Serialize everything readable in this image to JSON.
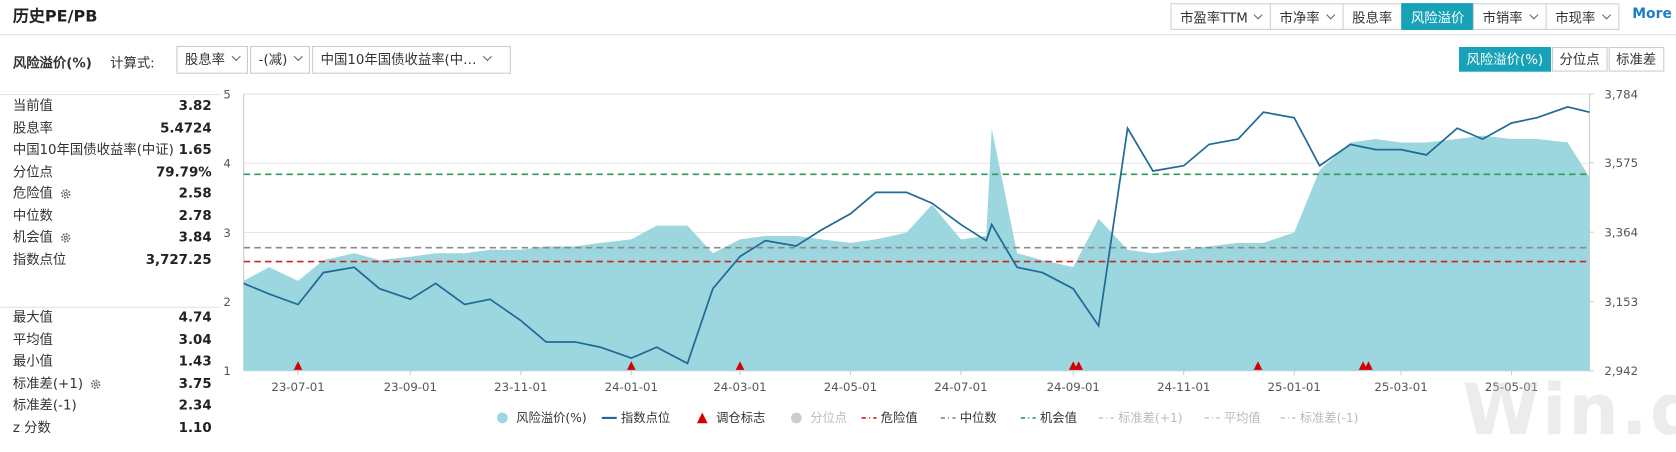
{
  "header": {
    "title": "历史PE/PB",
    "tabs": [
      {
        "label": "市盈率TTM",
        "dropdown": true
      },
      {
        "label": "市净率",
        "dropdown": true
      },
      {
        "label": "股息率",
        "dropdown": false
      },
      {
        "label": "风险溢价",
        "dropdown": false
      },
      {
        "label": "市销率",
        "dropdown": true
      },
      {
        "label": "市现率",
        "dropdown": true
      }
    ],
    "active_tab": 3,
    "more": "More"
  },
  "controls": {
    "label": "风险溢价(%)",
    "formula_label": "计算式:",
    "selects": [
      "股息率",
      "-(减)",
      "中国10年国债收益率(中…"
    ],
    "views": [
      "风险溢价(%)",
      "分位点",
      "标准差"
    ],
    "active_view": 0
  },
  "stats": {
    "groups": [
      [
        {
          "label": "当前值",
          "value": "3.82"
        },
        {
          "label": "股息率",
          "value": "5.4724"
        },
        {
          "label": "中国10年国债收益率(中证)",
          "value": "1.65"
        },
        {
          "label": "分位点",
          "value": "79.79%"
        },
        {
          "label": "危险值",
          "value": "2.58",
          "settings": true
        },
        {
          "label": "中位数",
          "value": "2.78"
        },
        {
          "label": "机会值",
          "value": "3.84",
          "settings": true
        },
        {
          "label": "指数点位",
          "value": "3,727.25"
        }
      ],
      [
        {
          "label": "最大值",
          "value": "4.74"
        },
        {
          "label": "平均值",
          "value": "3.04"
        },
        {
          "label": "最小值",
          "value": "1.43"
        },
        {
          "label": "标准差(+1)",
          "value": "3.75",
          "settings": true
        },
        {
          "label": "标准差(-1)",
          "value": "2.34"
        },
        {
          "label": "z 分数",
          "value": "1.10"
        }
      ]
    ]
  },
  "chart_data": {
    "type": "area-line",
    "x": [
      "23-06-01",
      "23-06-15",
      "23-07-01",
      "23-07-15",
      "23-08-01",
      "23-08-15",
      "23-09-01",
      "23-09-15",
      "23-10-01",
      "23-10-15",
      "23-11-01",
      "23-11-15",
      "23-12-01",
      "23-12-15",
      "24-01-01",
      "24-01-15",
      "24-02-01",
      "24-02-15",
      "24-03-01",
      "24-03-15",
      "24-04-01",
      "24-04-15",
      "24-05-01",
      "24-05-15",
      "24-06-01",
      "24-06-15",
      "24-07-01",
      "24-07-15",
      "24-07-18",
      "24-08-01",
      "24-08-15",
      "24-09-01",
      "24-09-15",
      "24-10-01",
      "24-10-15",
      "24-11-01",
      "24-11-15",
      "24-12-01",
      "24-12-15",
      "25-01-01",
      "25-01-15",
      "25-02-01",
      "25-02-15",
      "25-03-01",
      "25-03-15",
      "25-04-01",
      "25-04-15",
      "25-05-01",
      "25-05-15",
      "25-06-01",
      "25-06-13"
    ],
    "xlim": [
      "23-06-01",
      "25-06-13"
    ],
    "xticks": [
      "23-07-01",
      "23-09-01",
      "23-11-01",
      "24-01-01",
      "24-03-01",
      "24-05-01",
      "24-07-01",
      "24-09-01",
      "24-11-01",
      "25-01-01",
      "25-03-01",
      "25-05-01"
    ],
    "ylim": [
      1,
      5
    ],
    "yticks": [
      1,
      2,
      3,
      4,
      5
    ],
    "y2lim": [
      2942,
      3784
    ],
    "y2ticks": [
      {
        "value": 2942,
        "label": "2,942"
      },
      {
        "value": 3153,
        "label": "3,153"
      },
      {
        "value": 3364,
        "label": "3,364"
      },
      {
        "value": 3575,
        "label": "3,575"
      },
      {
        "value": 3784,
        "label": "3,784"
      }
    ],
    "grid": true,
    "series": [
      {
        "name": "风险溢价(%)",
        "type": "area",
        "color": "#9cd6de",
        "visible": true,
        "values": [
          2.3,
          2.5,
          2.3,
          2.6,
          2.7,
          2.6,
          2.65,
          2.7,
          2.7,
          2.75,
          2.75,
          2.8,
          2.8,
          2.85,
          2.9,
          3.1,
          3.1,
          2.7,
          2.9,
          2.95,
          2.95,
          2.9,
          2.85,
          2.9,
          3.0,
          3.4,
          2.9,
          2.95,
          4.5,
          2.7,
          2.6,
          2.5,
          3.2,
          2.75,
          2.7,
          2.75,
          2.8,
          2.85,
          2.85,
          3.0,
          3.9,
          4.3,
          4.35,
          4.3,
          4.3,
          4.35,
          4.4,
          4.35,
          4.35,
          4.3,
          3.8
        ]
      },
      {
        "name": "指数点位",
        "type": "line",
        "axis": "y2",
        "color": "#1f6a96",
        "visible": true,
        "values": [
          3208,
          3176,
          3144,
          3241,
          3257,
          3192,
          3160,
          3208,
          3144,
          3160,
          3095,
          3030,
          3030,
          3014,
          2981,
          3014,
          2965,
          3192,
          3290,
          3338,
          3322,
          3371,
          3420,
          3485,
          3485,
          3452,
          3387,
          3338,
          3387,
          3257,
          3241,
          3192,
          3079,
          3680,
          3550,
          3566,
          3631,
          3647,
          3729,
          3712,
          3566,
          3631,
          3615,
          3615,
          3599,
          3680,
          3647,
          3696,
          3712,
          3745,
          3729
        ]
      },
      {
        "name": "调仓标志",
        "type": "marker",
        "color": "#d40000",
        "visible": true,
        "x": [
          "23-07-01",
          "24-01-01",
          "24-03-01",
          "24-09-01",
          "24-09-04",
          "24-12-12",
          "25-02-08",
          "25-02-11"
        ]
      },
      {
        "name": "分位点",
        "type": "point",
        "color": "#cccccc",
        "visible": false
      },
      {
        "name": "危险值",
        "type": "reference",
        "color": "#cc2222",
        "visible": true,
        "value": 2.58
      },
      {
        "name": "中位数",
        "type": "reference",
        "color": "#8a8a8a",
        "visible": true,
        "value": 2.78
      },
      {
        "name": "机会值",
        "type": "reference",
        "color": "#2e9a5a",
        "visible": true,
        "value": 3.84
      },
      {
        "name": "标准差(+1)",
        "type": "reference",
        "color": "#cccccc",
        "visible": false
      },
      {
        "name": "平均值",
        "type": "reference",
        "color": "#cccccc",
        "visible": false
      },
      {
        "name": "标准差(-1)",
        "type": "reference",
        "color": "#cccccc",
        "visible": false
      }
    ]
  },
  "watermark": "Win.d"
}
